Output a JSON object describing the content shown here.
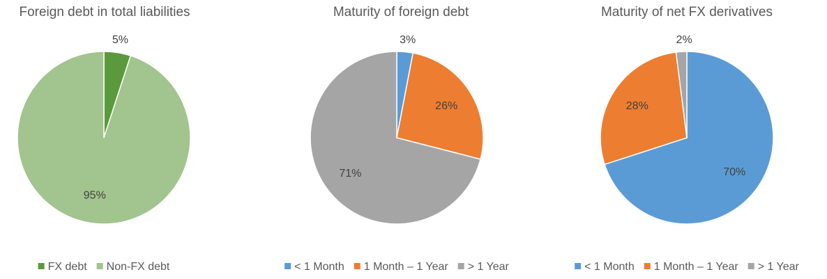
{
  "chart_data": [
    {
      "type": "pie",
      "title": "Foreign debt in total liabilities",
      "categories": [
        "FX debt",
        "Non-FX debt"
      ],
      "values": [
        5,
        95
      ],
      "value_labels": [
        "5%",
        "95%"
      ],
      "colors": [
        "#5b9a3c",
        "#a2c48e"
      ]
    },
    {
      "type": "pie",
      "title": "Maturity of foreign debt",
      "categories": [
        "< 1 Month",
        "1 Month – 1 Year",
        "> 1 Year"
      ],
      "values": [
        3,
        26,
        71
      ],
      "value_labels": [
        "3%",
        "26%",
        "71%"
      ],
      "colors": [
        "#5b9bd5",
        "#ed7d31",
        "#a5a5a5"
      ]
    },
    {
      "type": "pie",
      "title": "Maturity of net FX derivatives",
      "categories": [
        "< 1 Month",
        "1 Month – 1 Year",
        "> 1 Year"
      ],
      "values": [
        70,
        28,
        2
      ],
      "value_labels": [
        "70%",
        "28%",
        "2%"
      ],
      "colors": [
        "#5b9bd5",
        "#ed7d31",
        "#a5a5a5"
      ]
    }
  ]
}
